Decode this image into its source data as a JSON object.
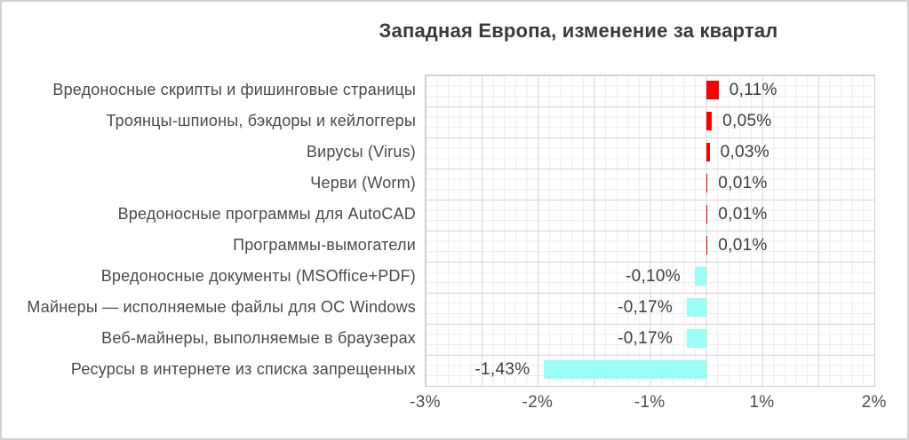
{
  "chart_data": {
    "type": "bar",
    "orientation": "horizontal",
    "title": "Западная Европа, изменение за квартал",
    "categories": [
      "Вредоносные скрипты и фишинговые страницы",
      "Троянцы-шпионы, бэкдоры и кейлоггеры",
      "Вирусы (Virus)",
      "Черви (Worm)",
      "Вредоносные программы для AutoCAD",
      "Программы-вымогатели",
      "Вредоносные документы (MSOffice+PDF)",
      "Майнеры — исполняемые файлы для ОС Windows",
      "Веб-майнеры, выполняемые в браузерах",
      "Ресурсы в интернете из списка запрещенных"
    ],
    "values": [
      0.11,
      0.05,
      0.03,
      0.01,
      0.01,
      0.01,
      -0.1,
      -0.17,
      -0.17,
      -1.43
    ],
    "value_labels": [
      "0,11%",
      "0,05%",
      "0,03%",
      "0,01%",
      "0,01%",
      "0,01%",
      "-0,10%",
      "-0,17%",
      "-0,17%",
      "-1,43%"
    ],
    "x_tick_labels": [
      "-3%",
      "-2%",
      "-1%",
      "1%",
      "2%"
    ],
    "xlim": [
      -3,
      2
    ],
    "grid": true,
    "legend": false,
    "colors": {
      "positive_bar": "#fb0000",
      "negative_bar": "#99fff5",
      "major_grid": "#d7d7d7",
      "minor_grid": "#ededed",
      "text": "#3d3d3d"
    }
  }
}
